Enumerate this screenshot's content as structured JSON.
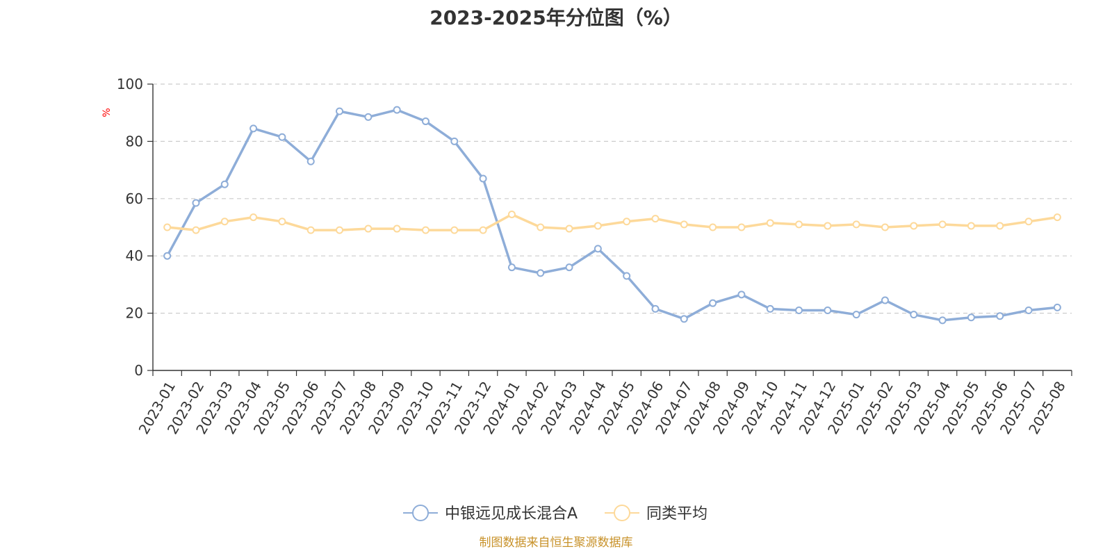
{
  "colors": {
    "series1": "#8eadd8",
    "series2": "#fdd99a",
    "grid": "#cccccc",
    "axis": "#333333",
    "ylabel": "#ff0000",
    "footer": "#c8922a"
  },
  "footer": "制图数据来自恒生聚源数据库",
  "chart_data": {
    "type": "line",
    "title": "2023-2025年分位图（%）",
    "ylabel": "%",
    "xlabel": "",
    "ylim": [
      0,
      100
    ],
    "yticks": [
      0,
      20,
      40,
      60,
      80,
      100
    ],
    "grid": true,
    "legend_position": "bottom-center",
    "categories": [
      "2023-01",
      "2023-02",
      "2023-03",
      "2023-04",
      "2023-05",
      "2023-06",
      "2023-07",
      "2023-08",
      "2023-09",
      "2023-10",
      "2023-11",
      "2023-12",
      "2024-01",
      "2024-02",
      "2024-03",
      "2024-04",
      "2024-05",
      "2024-06",
      "2024-07",
      "2024-08",
      "2024-09",
      "2024-10",
      "2024-11",
      "2024-12",
      "2025-01",
      "2025-02",
      "2025-03",
      "2025-04",
      "2025-05",
      "2025-06",
      "2025-07",
      "2025-08"
    ],
    "series": [
      {
        "name": "中银远见成长混合A",
        "color": "#8eadd8",
        "values": [
          40,
          58.5,
          65,
          84.5,
          81.5,
          73,
          90.5,
          88.5,
          91,
          87,
          80,
          67,
          36,
          34,
          36,
          42.5,
          33,
          21.5,
          18,
          23.5,
          26.5,
          21.5,
          21,
          21,
          19.5,
          24.5,
          19.5,
          17.5,
          18.5,
          19,
          21,
          22
        ]
      },
      {
        "name": "同类平均",
        "color": "#fdd99a",
        "values": [
          50,
          49,
          52,
          53.5,
          52,
          49,
          49,
          49.5,
          49.5,
          49,
          49,
          49,
          54.5,
          50,
          49.5,
          50.5,
          52,
          53,
          51,
          50,
          50,
          51.5,
          51,
          50.5,
          51,
          50,
          50.5,
          51,
          50.5,
          50.5,
          52,
          53.5
        ]
      }
    ]
  }
}
